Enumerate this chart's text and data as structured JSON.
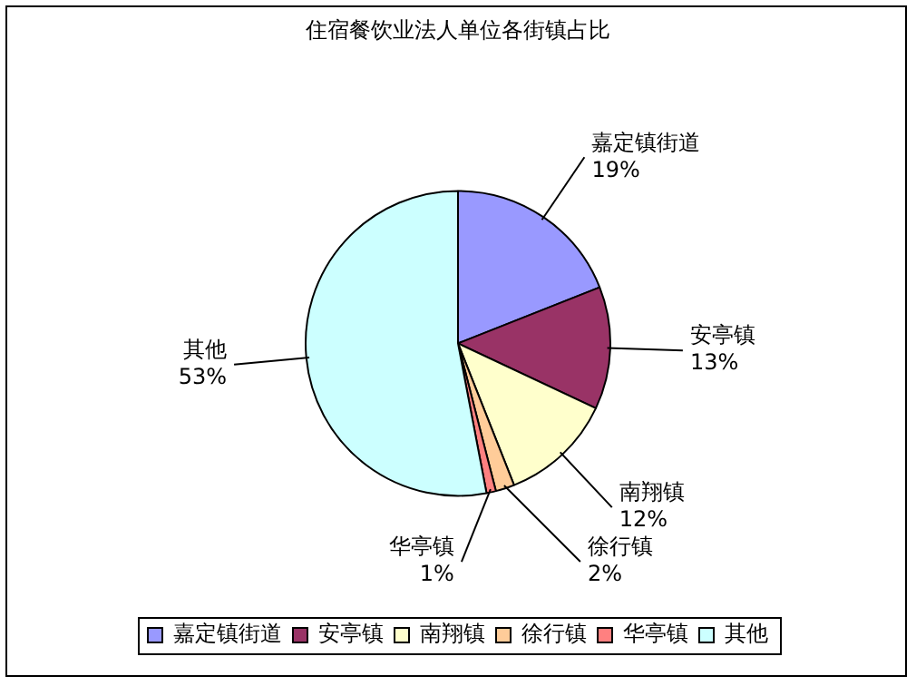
{
  "chart_data": {
    "type": "pie",
    "title": "住宿餐饮业法人单位各街镇占比",
    "categories": [
      "嘉定镇街道",
      "安亭镇",
      "南翔镇",
      "徐行镇",
      "华亭镇",
      "其他"
    ],
    "values": [
      19,
      13,
      12,
      2,
      1,
      53
    ],
    "colors": [
      "#9999ff",
      "#993366",
      "#ffffcc",
      "#ffcc99",
      "#ff8080",
      "#ccffff"
    ],
    "value_labels": [
      "19%",
      "13%",
      "12%",
      "2%",
      "1%",
      "53%"
    ],
    "legend": "bottom"
  }
}
